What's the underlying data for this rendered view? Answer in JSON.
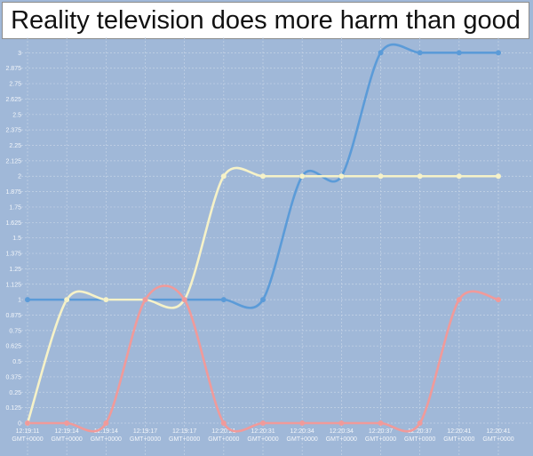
{
  "chart_data": {
    "type": "line",
    "title": "Reality television does more harm than good",
    "xlabel": "",
    "ylabel": "",
    "ylim": [
      0,
      3.125
    ],
    "grid": true,
    "legend": "none",
    "x": [
      "12:19:11 GMT+0000",
      "12:19:14 GMT+0000",
      "12:19:14 GMT+0000",
      "12:19:17 GMT+0000",
      "12:19:17 GMT+0000",
      "12:20:21 GMT+0000",
      "12:20:31 GMT+0000",
      "12:20:34 GMT+0000",
      "12:20:34 GMT+0000",
      "12:20:37 GMT+0000",
      "12:20:37 GMT+0000",
      "12:20:41 GMT+0000",
      "12:20:41 GMT+0000"
    ],
    "yticks": [
      "0",
      "0.125",
      "0.25",
      "0.375",
      "0.5",
      "0.625",
      "0.75",
      "0.875",
      "1",
      "1.125",
      "1.25",
      "1.375",
      "1.5",
      "1.625",
      "1.75",
      "1.875",
      "2",
      "2.125",
      "2.25",
      "2.375",
      "2.5",
      "2.625",
      "2.75",
      "2.875",
      "3"
    ],
    "series": [
      {
        "color": "#5b9bd8",
        "values": [
          1,
          1,
          1,
          1,
          1,
          1,
          1,
          2,
          2,
          3,
          3,
          3,
          3
        ]
      },
      {
        "color": "#f6f2c8",
        "values": [
          0,
          1,
          1,
          1,
          1,
          2,
          2,
          2,
          2,
          2,
          2,
          2,
          2
        ]
      },
      {
        "color": "#f09a9a",
        "values": [
          0,
          0,
          0,
          1,
          1,
          0,
          0,
          0,
          0,
          0,
          0,
          1,
          1
        ]
      }
    ]
  }
}
